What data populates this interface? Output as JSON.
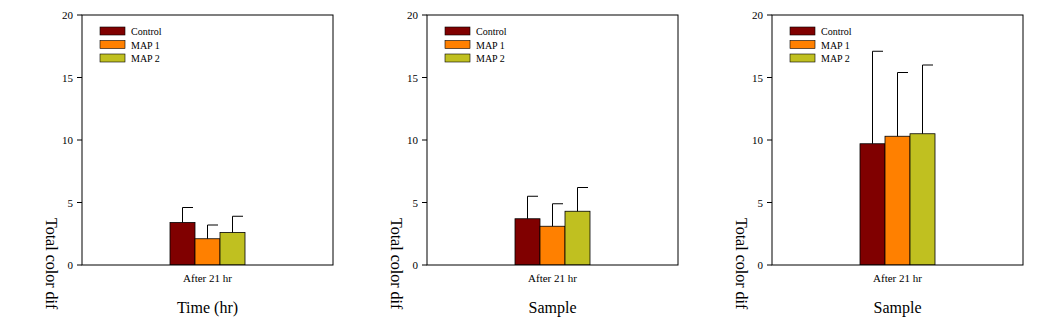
{
  "chart_data": [
    {
      "type": "bar",
      "categories": [
        "After 21 hr"
      ],
      "x_label": "Time (hr)",
      "y_label": "Total color dif",
      "ylim": [
        0,
        20
      ],
      "yticks": [
        0,
        5,
        10,
        15,
        20
      ],
      "legend": "upper left",
      "series": [
        {
          "name": "Control",
          "color": "#800000",
          "values": [
            3.4
          ],
          "errors": [
            1.2
          ]
        },
        {
          "name": "MAP 1",
          "color": "#ff8000",
          "values": [
            2.1
          ],
          "errors": [
            1.1
          ]
        },
        {
          "name": "MAP 2",
          "color": "#c0c020",
          "values": [
            2.6
          ],
          "errors": [
            1.3
          ]
        }
      ]
    },
    {
      "type": "bar",
      "categories": [
        "After 21 hr"
      ],
      "x_label": "Sample",
      "y_label": "Total color dif",
      "ylim": [
        0,
        20
      ],
      "yticks": [
        0,
        5,
        10,
        15,
        20
      ],
      "legend": "upper left",
      "series": [
        {
          "name": "Control",
          "color": "#800000",
          "values": [
            3.7
          ],
          "errors": [
            1.8
          ]
        },
        {
          "name": "MAP 1",
          "color": "#ff8000",
          "values": [
            3.1
          ],
          "errors": [
            1.8
          ]
        },
        {
          "name": "MAP 2",
          "color": "#c0c020",
          "values": [
            4.3
          ],
          "errors": [
            1.9
          ]
        }
      ]
    },
    {
      "type": "bar",
      "categories": [
        "After 21 hr"
      ],
      "x_label": "Sample",
      "y_label": "Total color dif",
      "ylim": [
        0,
        20
      ],
      "yticks": [
        0,
        5,
        10,
        15,
        20
      ],
      "legend": "upper left",
      "series": [
        {
          "name": "Control",
          "color": "#800000",
          "values": [
            9.7
          ],
          "errors": [
            7.4
          ]
        },
        {
          "name": "MAP 1",
          "color": "#ff8000",
          "values": [
            10.3
          ],
          "errors": [
            5.1
          ]
        },
        {
          "name": "MAP 2",
          "color": "#c0c020",
          "values": [
            10.5
          ],
          "errors": [
            5.5
          ]
        }
      ]
    }
  ]
}
